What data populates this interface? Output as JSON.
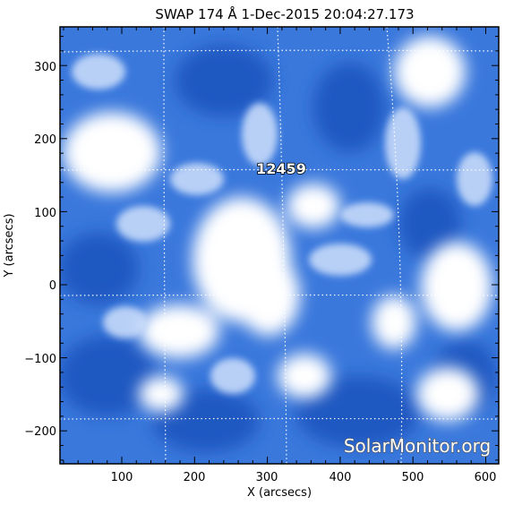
{
  "title": "SWAP 174 Å  1-Dec-2015 20:04:27.173",
  "x_axis_label": "X (arcsecs)",
  "y_axis_label": "Y (arcsecs)",
  "x_ticks": [
    "100",
    "200",
    "300",
    "400",
    "500",
    "600"
  ],
  "y_ticks": [
    "300",
    "200",
    "100",
    "0",
    "−100",
    "−200"
  ],
  "active_region_label": "12459",
  "watermark": "SolarMonitor.org",
  "colors": {
    "image_background": "#2f6fd8",
    "bright": "#ffffff",
    "frame": "#000000",
    "grid": "#ffffff"
  }
}
